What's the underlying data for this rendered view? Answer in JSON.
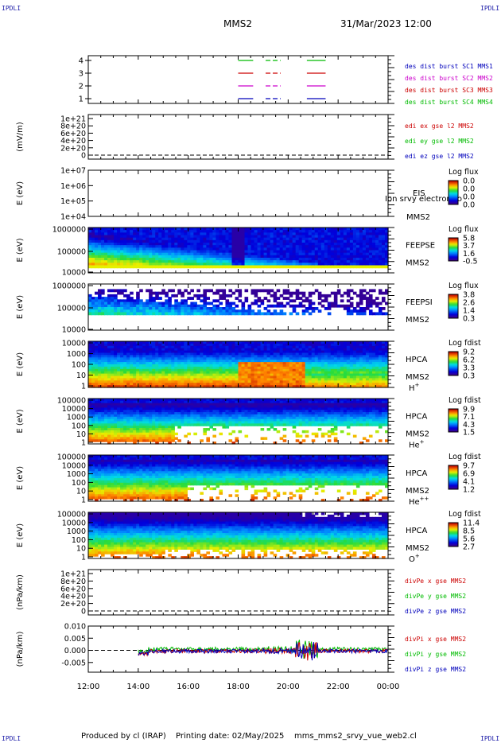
{
  "corner_label": "IPDLI",
  "header": {
    "mission": "MMS2",
    "datetime": "31/Mar/2023 12:00"
  },
  "footer": {
    "produced": "Produced by cl (IRAP)",
    "printed": "Printing date: 02/May/2025",
    "script": "mms_mms2_srvy_vue_web2.cl"
  },
  "colors": {
    "mms1": "#0000bb",
    "mms2": "#cc00cc",
    "mms3": "#cc0000",
    "mms4": "#00bb00",
    "x_comp": "#cc0000",
    "y_comp": "#00bb00",
    "z_comp": "#0000bb"
  },
  "chart_data": [
    {
      "id": "burst",
      "type": "line",
      "y_ticks": [
        "4",
        "3",
        "2",
        "1"
      ],
      "series": [
        {
          "name": "des dist burst SC1 MMS1",
          "level": 1,
          "color": "#0000bb"
        },
        {
          "name": "des dist burst SC2 MMS2",
          "level": 2,
          "color": "#cc00cc"
        },
        {
          "name": "des dist burst SC3 MMS3",
          "level": 3,
          "color": "#cc0000"
        },
        {
          "name": "des dist burst SC4 MMS4",
          "level": 4,
          "color": "#00bb00"
        }
      ],
      "intervals_hours": [
        [
          18.0,
          18.6
        ],
        [
          19.1,
          19.7
        ],
        [
          20.75,
          21.5
        ]
      ]
    },
    {
      "id": "edi",
      "type": "line",
      "ylabel": "(mV/m)",
      "y_ticks": [
        "1e+21",
        "8e+20",
        "6e+20",
        "4e+20",
        "2e+20",
        "0"
      ],
      "legend": [
        {
          "name": "edi ex gse l2 MMS2",
          "color": "#cc0000"
        },
        {
          "name": "edi ey gse l2 MMS2",
          "color": "#00bb00"
        },
        {
          "name": "edi ez gse l2 MMS2",
          "color": "#0000bb"
        }
      ]
    },
    {
      "id": "eis",
      "type": "heatmap",
      "ylabel": "E (eV)",
      "y_ticks": [
        "1e+07",
        "1e+06",
        "1e+05",
        "1e+04"
      ],
      "instrument": [
        "EIS",
        "MMS2"
      ],
      "overlay_text": "Ion srvy electron to",
      "cbar_title": "Log flux",
      "cbar_ticks": [
        "0.0",
        "0.0",
        "0.0",
        "0.0"
      ]
    },
    {
      "id": "feepse",
      "type": "heatmap",
      "ylabel": "E (eV)",
      "y_ticks": [
        "1000000",
        "100000",
        "10000"
      ],
      "instrument": [
        "FEEPSE",
        "MMS2"
      ],
      "cbar_title": "Log flux",
      "cbar_ticks": [
        "5.8",
        "3.7",
        "1.6",
        "-0.5"
      ]
    },
    {
      "id": "feepsi",
      "type": "heatmap",
      "ylabel": "E (eV)",
      "y_ticks": [
        "1000000",
        "100000",
        "10000"
      ],
      "instrument": [
        "FEEPSI",
        "MMS2"
      ],
      "cbar_title": "Log flux",
      "cbar_ticks": [
        "3.8",
        "2.6",
        "1.4",
        "0.3"
      ]
    },
    {
      "id": "hpca_h",
      "type": "heatmap",
      "ylabel": "E (eV)",
      "y_ticks": [
        "10000",
        "1000",
        "100",
        "10",
        "1"
      ],
      "instrument": [
        "HPCA",
        "MMS2"
      ],
      "species": "H",
      "charge": "+",
      "cbar_title": "Log fdist",
      "cbar_ticks": [
        "9.2",
        "6.2",
        "3.3",
        "0.3"
      ]
    },
    {
      "id": "hpca_he",
      "type": "heatmap",
      "ylabel": "E (eV)",
      "y_ticks": [
        "100000",
        "10000",
        "1000",
        "100",
        "10",
        "1"
      ],
      "instrument": [
        "HPCA",
        "MMS2"
      ],
      "species": "He",
      "charge": "+",
      "cbar_title": "Log fdist",
      "cbar_ticks": [
        "9.9",
        "7.1",
        "4.3",
        "1.5"
      ]
    },
    {
      "id": "hpca_he2",
      "type": "heatmap",
      "ylabel": "E (eV)",
      "y_ticks": [
        "100000",
        "10000",
        "1000",
        "100",
        "10",
        "1"
      ],
      "instrument": [
        "HPCA",
        "MMS2"
      ],
      "species": "He",
      "charge": "++",
      "cbar_title": "Log fdist",
      "cbar_ticks": [
        "9.7",
        "6.9",
        "4.1",
        "1.2"
      ]
    },
    {
      "id": "hpca_o",
      "type": "heatmap",
      "ylabel": "E (eV)",
      "y_ticks": [
        "100000",
        "10000",
        "1000",
        "100",
        "10",
        "1"
      ],
      "instrument": [
        "HPCA",
        "MMS2"
      ],
      "species": "O",
      "charge": "+",
      "cbar_title": "Log fdist",
      "cbar_ticks": [
        "11.4",
        "8.5",
        "5.6",
        "2.7"
      ]
    },
    {
      "id": "divpe",
      "type": "line",
      "ylabel": "(nPa/km)",
      "y_ticks": [
        "1e+21",
        "8e+20",
        "6e+20",
        "4e+20",
        "2e+20",
        "0"
      ],
      "legend": [
        {
          "name": "divPe x gse MMS2",
          "color": "#cc0000"
        },
        {
          "name": "divPe y gse MMS2",
          "color": "#00bb00"
        },
        {
          "name": "divPe z gse MMS2",
          "color": "#0000bb"
        }
      ]
    },
    {
      "id": "divpi",
      "type": "line",
      "ylabel": "(nPa/km)",
      "y_ticks": [
        "0.010",
        "0.005",
        "0.000",
        "-0.005"
      ],
      "ylim": [
        -0.009,
        0.01
      ],
      "legend": [
        {
          "name": "divPi x gse MMS2",
          "color": "#cc0000"
        },
        {
          "name": "divPi y gse MMS2",
          "color": "#00bb00"
        },
        {
          "name": "divPi z gse MMS2",
          "color": "#0000bb"
        }
      ]
    }
  ],
  "x_axis": {
    "ticks": [
      "12:00",
      "14:00",
      "16:00",
      "18:00",
      "20:00",
      "22:00",
      "00:00"
    ],
    "range_hours": [
      12,
      24
    ]
  }
}
